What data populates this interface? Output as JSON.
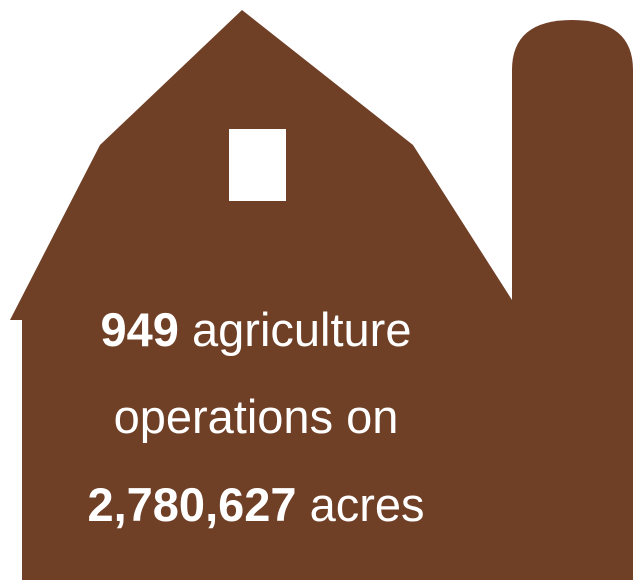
{
  "colors": {
    "barn": "#6F3F26",
    "window": "#FFFFFF",
    "text": "#FFFFFF",
    "background": "#FFFFFF"
  },
  "icons": {
    "barn": "barn-icon",
    "silo": "silo-icon"
  },
  "stat": {
    "operations_count": "949",
    "line1_suffix": " agriculture",
    "line2": "operations on",
    "acres": "2,780,627",
    "line3_suffix": " acres"
  }
}
